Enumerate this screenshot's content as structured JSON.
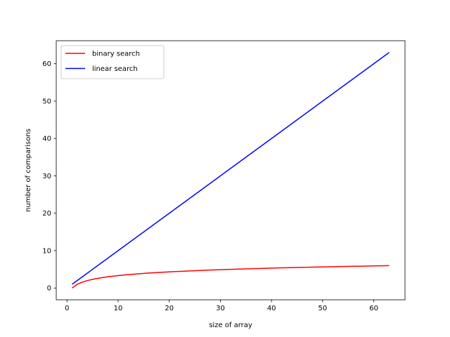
{
  "chart_data": {
    "type": "line",
    "xlabel": "size of array",
    "ylabel": "number of comparisons",
    "xlim": [
      -2.1,
      66.1
    ],
    "ylim": [
      -3.15,
      66.15
    ],
    "xticks": [
      0,
      10,
      20,
      30,
      40,
      50,
      60
    ],
    "yticks": [
      0,
      10,
      20,
      30,
      40,
      50,
      60
    ],
    "grid": false,
    "legend_position": "top-left",
    "series": [
      {
        "name": "binary search",
        "color": "#ff0000",
        "x": [
          1,
          2,
          3,
          4,
          5,
          6,
          7,
          8,
          10,
          12,
          14,
          16,
          20,
          24,
          28,
          32,
          36,
          40,
          44,
          48,
          52,
          56,
          60,
          63
        ],
        "y": [
          0,
          1,
          1.58,
          2,
          2.32,
          2.58,
          2.81,
          3,
          3.32,
          3.58,
          3.81,
          4,
          4.32,
          4.58,
          4.81,
          5,
          5.17,
          5.32,
          5.46,
          5.58,
          5.7,
          5.81,
          5.91,
          5.98
        ]
      },
      {
        "name": "linear search",
        "color": "#0000ff",
        "x": [
          1,
          63
        ],
        "y": [
          1,
          63
        ]
      }
    ]
  }
}
